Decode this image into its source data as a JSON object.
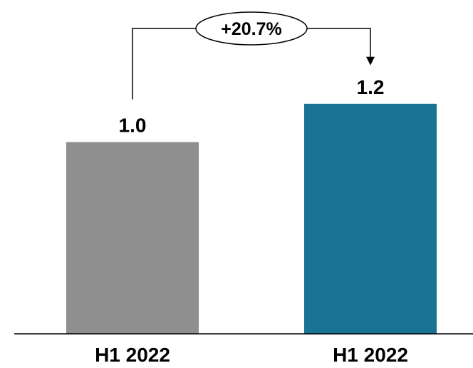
{
  "chart_data": {
    "type": "bar",
    "categories": [
      "H1 2022",
      "H1 2022"
    ],
    "values": [
      1.0,
      1.2
    ],
    "value_labels": [
      "1.0",
      "1.2"
    ],
    "colors": [
      "#8f8f8f",
      "#1a7394"
    ],
    "ylim": [
      0,
      1.5
    ],
    "grid": false,
    "legend": "none",
    "annotation": {
      "label": "+20.7%",
      "from_index": 0,
      "to_index": 1
    }
  }
}
